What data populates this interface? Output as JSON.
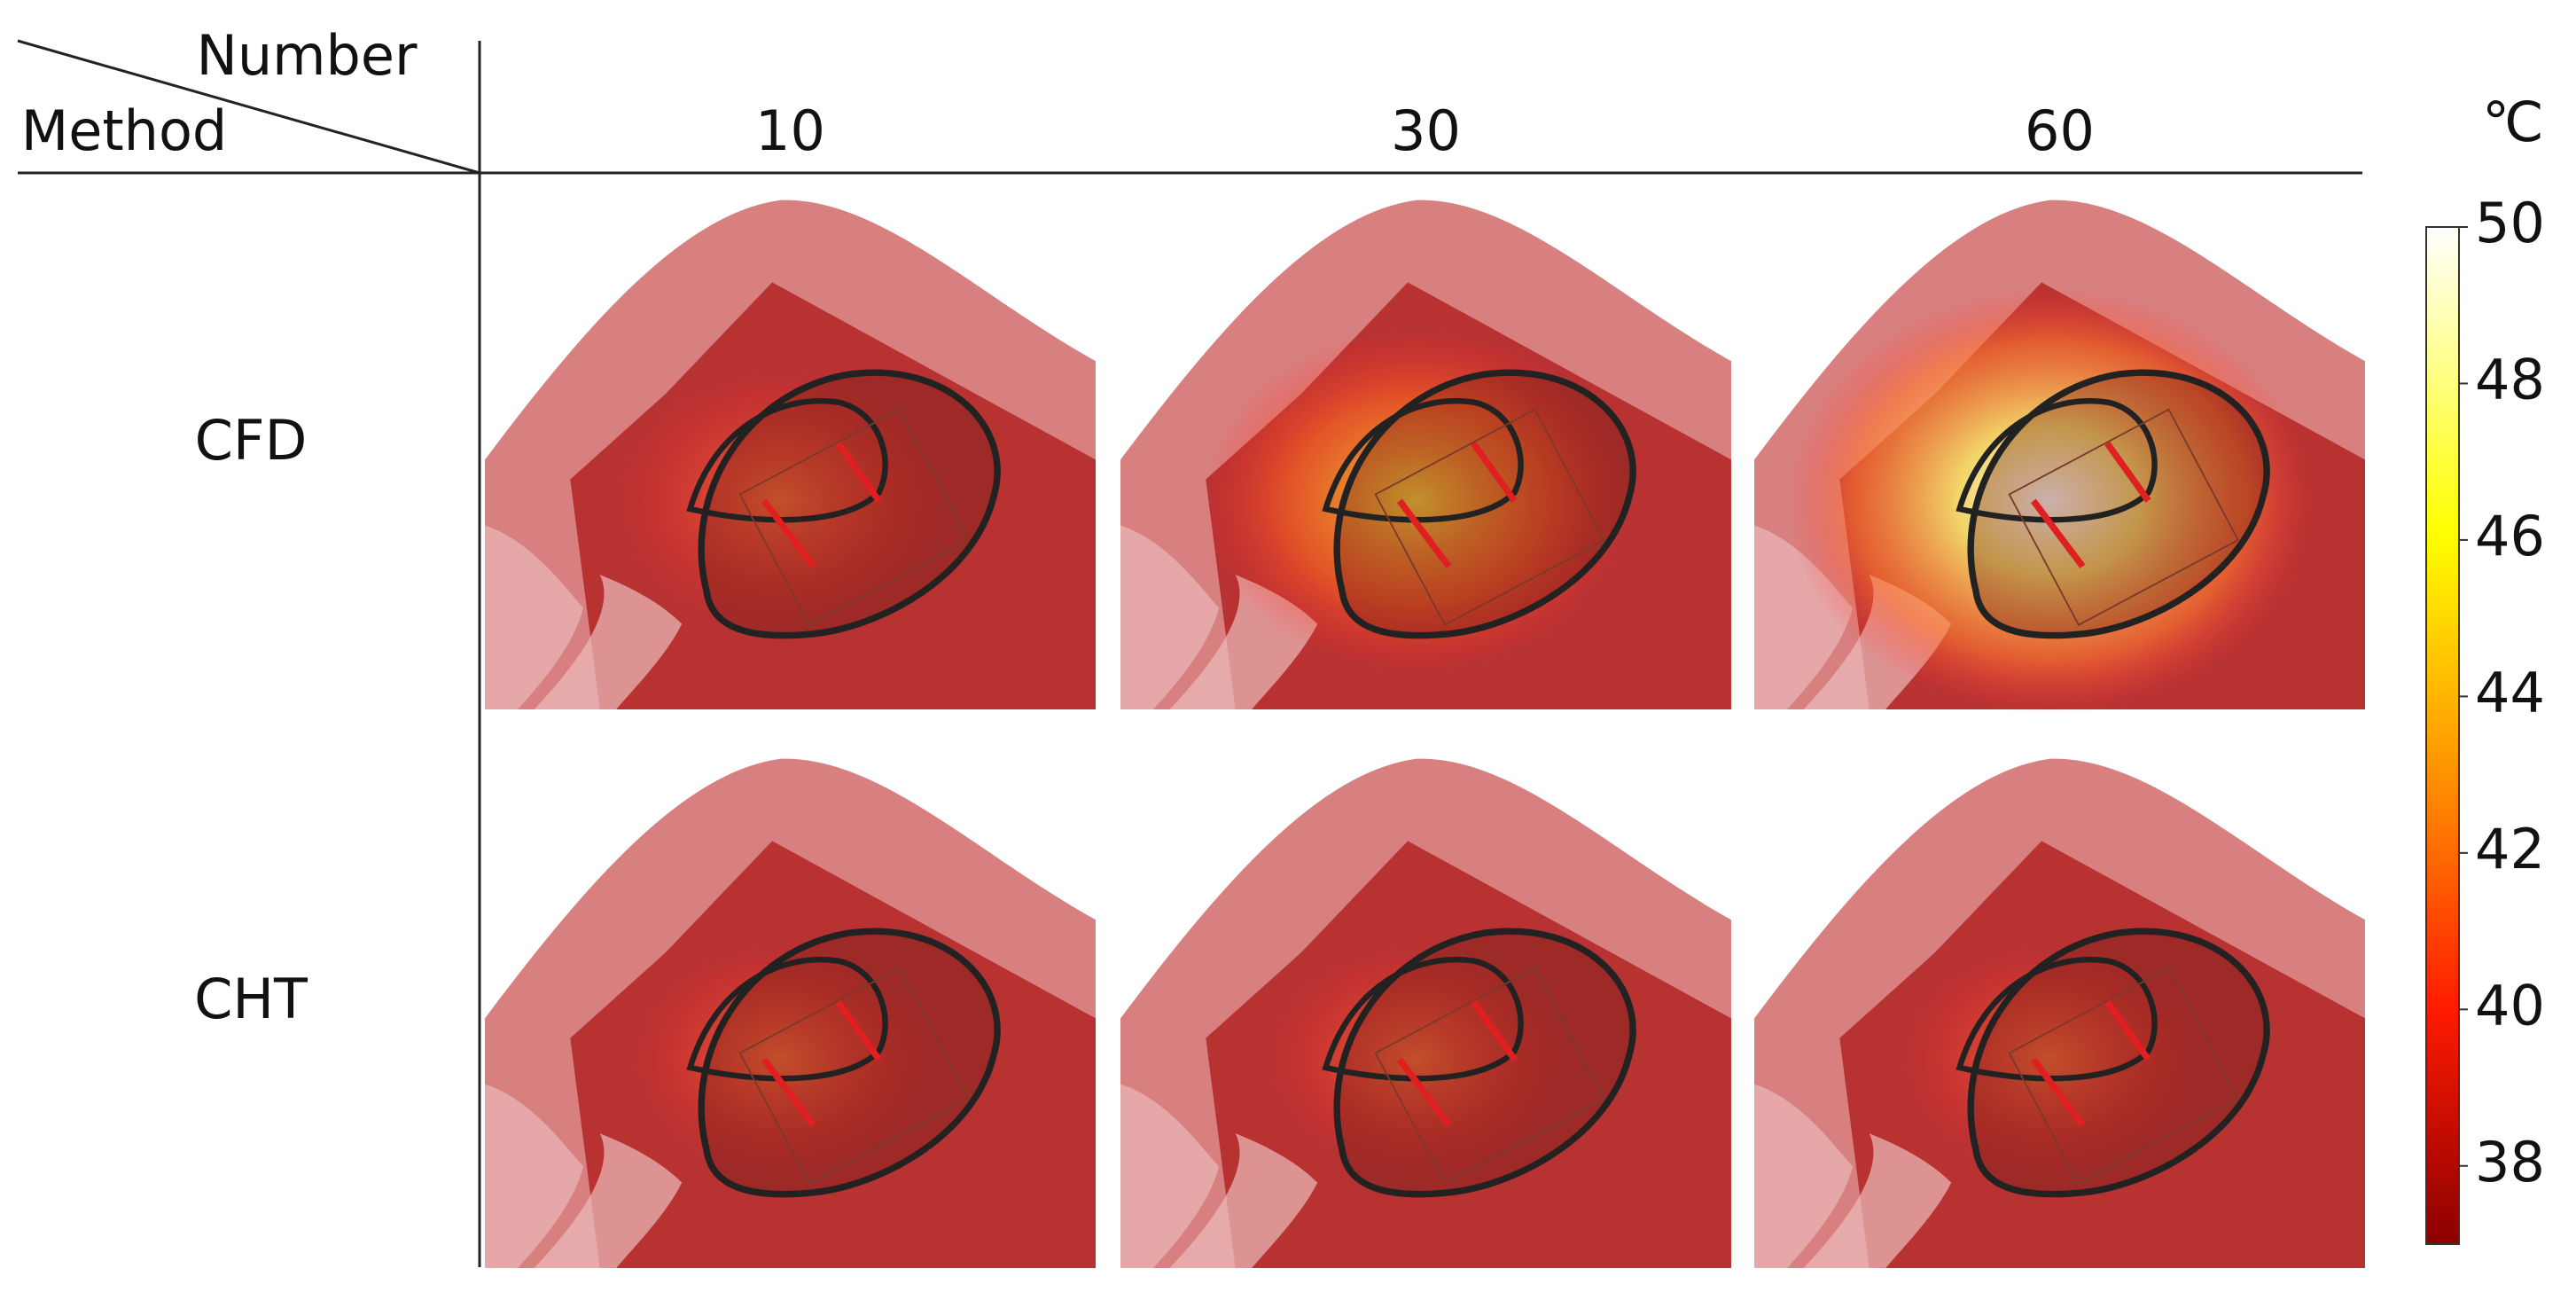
{
  "header": {
    "corner_top": "Number",
    "corner_bottom": "Method"
  },
  "columns": [
    "10",
    "30",
    "60"
  ],
  "rows": [
    "CFD",
    "CHT"
  ],
  "colorbar": {
    "unit": "℃",
    "range": [
      37,
      50
    ],
    "ticks": [
      38,
      40,
      42,
      44,
      46,
      48,
      50
    ]
  }
}
